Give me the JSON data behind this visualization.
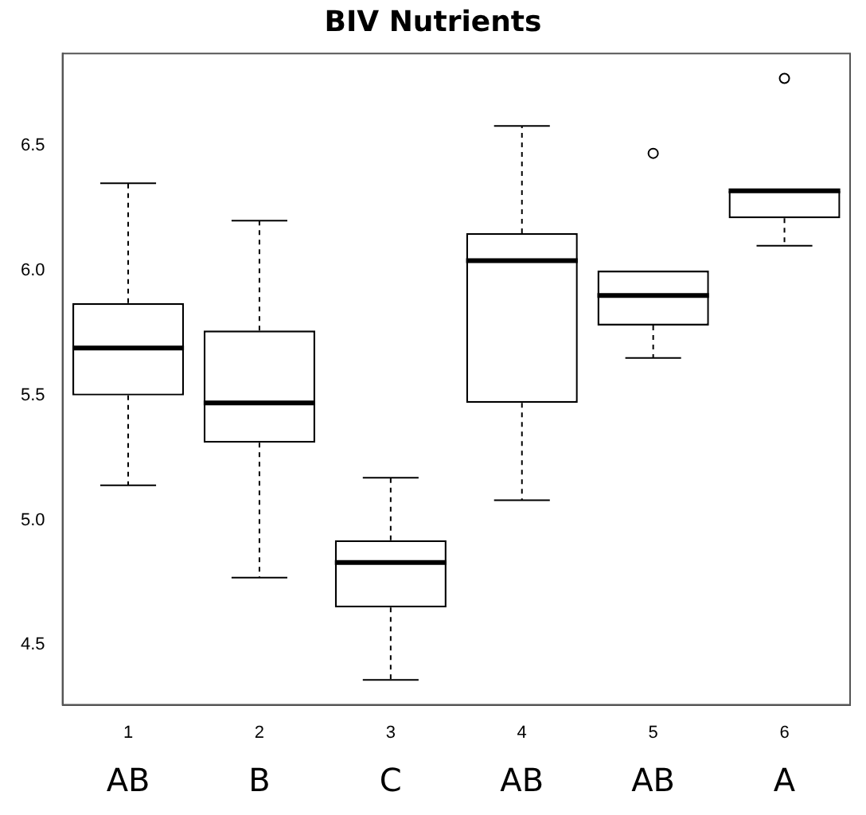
{
  "chart_data": {
    "type": "box",
    "title": "BIV Nutrients",
    "categories": [
      "1",
      "2",
      "3",
      "4",
      "5",
      "6"
    ],
    "boxes": [
      {
        "low": 5.14,
        "q1": 5.5,
        "median": 5.69,
        "q3": 5.87,
        "high": 6.35
      },
      {
        "low": 4.77,
        "q1": 5.31,
        "median": 5.47,
        "q3": 5.76,
        "high": 6.2
      },
      {
        "low": 4.36,
        "q1": 4.65,
        "median": 4.83,
        "q3": 4.92,
        "high": 5.17
      },
      {
        "low": 5.08,
        "q1": 5.47,
        "median": 6.04,
        "q3": 6.15,
        "high": 6.58
      },
      {
        "low": 5.65,
        "q1": 5.78,
        "median": 5.9,
        "q3": 6.0,
        "high": 6.0,
        "outliers": [
          6.47
        ]
      },
      {
        "low": 6.1,
        "q1": 6.21,
        "median": 6.32,
        "q3": 6.32,
        "high": 6.32,
        "outliers": [
          6.77
        ]
      }
    ],
    "ylim": [
      4.26,
      6.87
    ],
    "yticks": [
      4.5,
      {
        "value": 5,
        "label": "5.0"
      },
      5.5,
      {
        "value": 6,
        "label": "6.0"
      },
      6.5
    ],
    "color": "#000000",
    "grid": false,
    "legend": false,
    "annotations": [
      "AB",
      "B",
      "C",
      "AB",
      "AB",
      "A"
    ]
  }
}
